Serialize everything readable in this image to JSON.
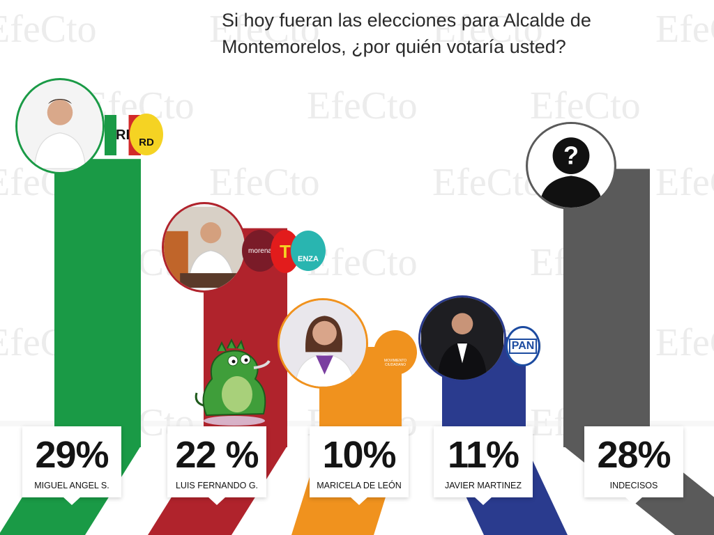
{
  "title": "Si hoy fueran las elecciones para Alcalde de Montemorelos, ¿por quién votaría usted?",
  "watermark": "EfeCto",
  "colors": {
    "green": "#1a9a46",
    "red": "#b0232c",
    "orange": "#f0921e",
    "blue": "#2a3b8e",
    "gray": "#5a5a5a"
  },
  "chart_data": {
    "type": "bar",
    "title": "Si hoy fueran las elecciones para Alcalde de Montemorelos, ¿por quién votaría usted?",
    "categories": [
      "MIGUEL ANGEL S.",
      "LUIS FERNANDO G.",
      "MARICELA DE LEÓN",
      "JAVIER MARTINEZ",
      "INDECISOS"
    ],
    "values": [
      29,
      22,
      10,
      11,
      28
    ],
    "value_labels": [
      "29%",
      "22 %",
      "10%",
      "11%",
      "28%"
    ],
    "unit": "%",
    "bar_colors": [
      "#1a9a46",
      "#b0232c",
      "#f0921e",
      "#2a3b8e",
      "#5a5a5a"
    ],
    "party_logos": [
      [
        "PRI",
        "PRD"
      ],
      [
        "morena",
        "PT",
        "NUEVA ALIANZA"
      ],
      [
        "MOVIMIENTO CIUDADANO"
      ],
      [
        "PAN"
      ],
      []
    ],
    "grid": false,
    "legend": "none"
  },
  "logos": {
    "pri": "RI",
    "prd": "RD",
    "morena": "morena",
    "pt": "T",
    "na": "ENZA",
    "mc": "MOVIMIENTO CIUDADANO",
    "pan": "PAN",
    "unknown": "?"
  }
}
